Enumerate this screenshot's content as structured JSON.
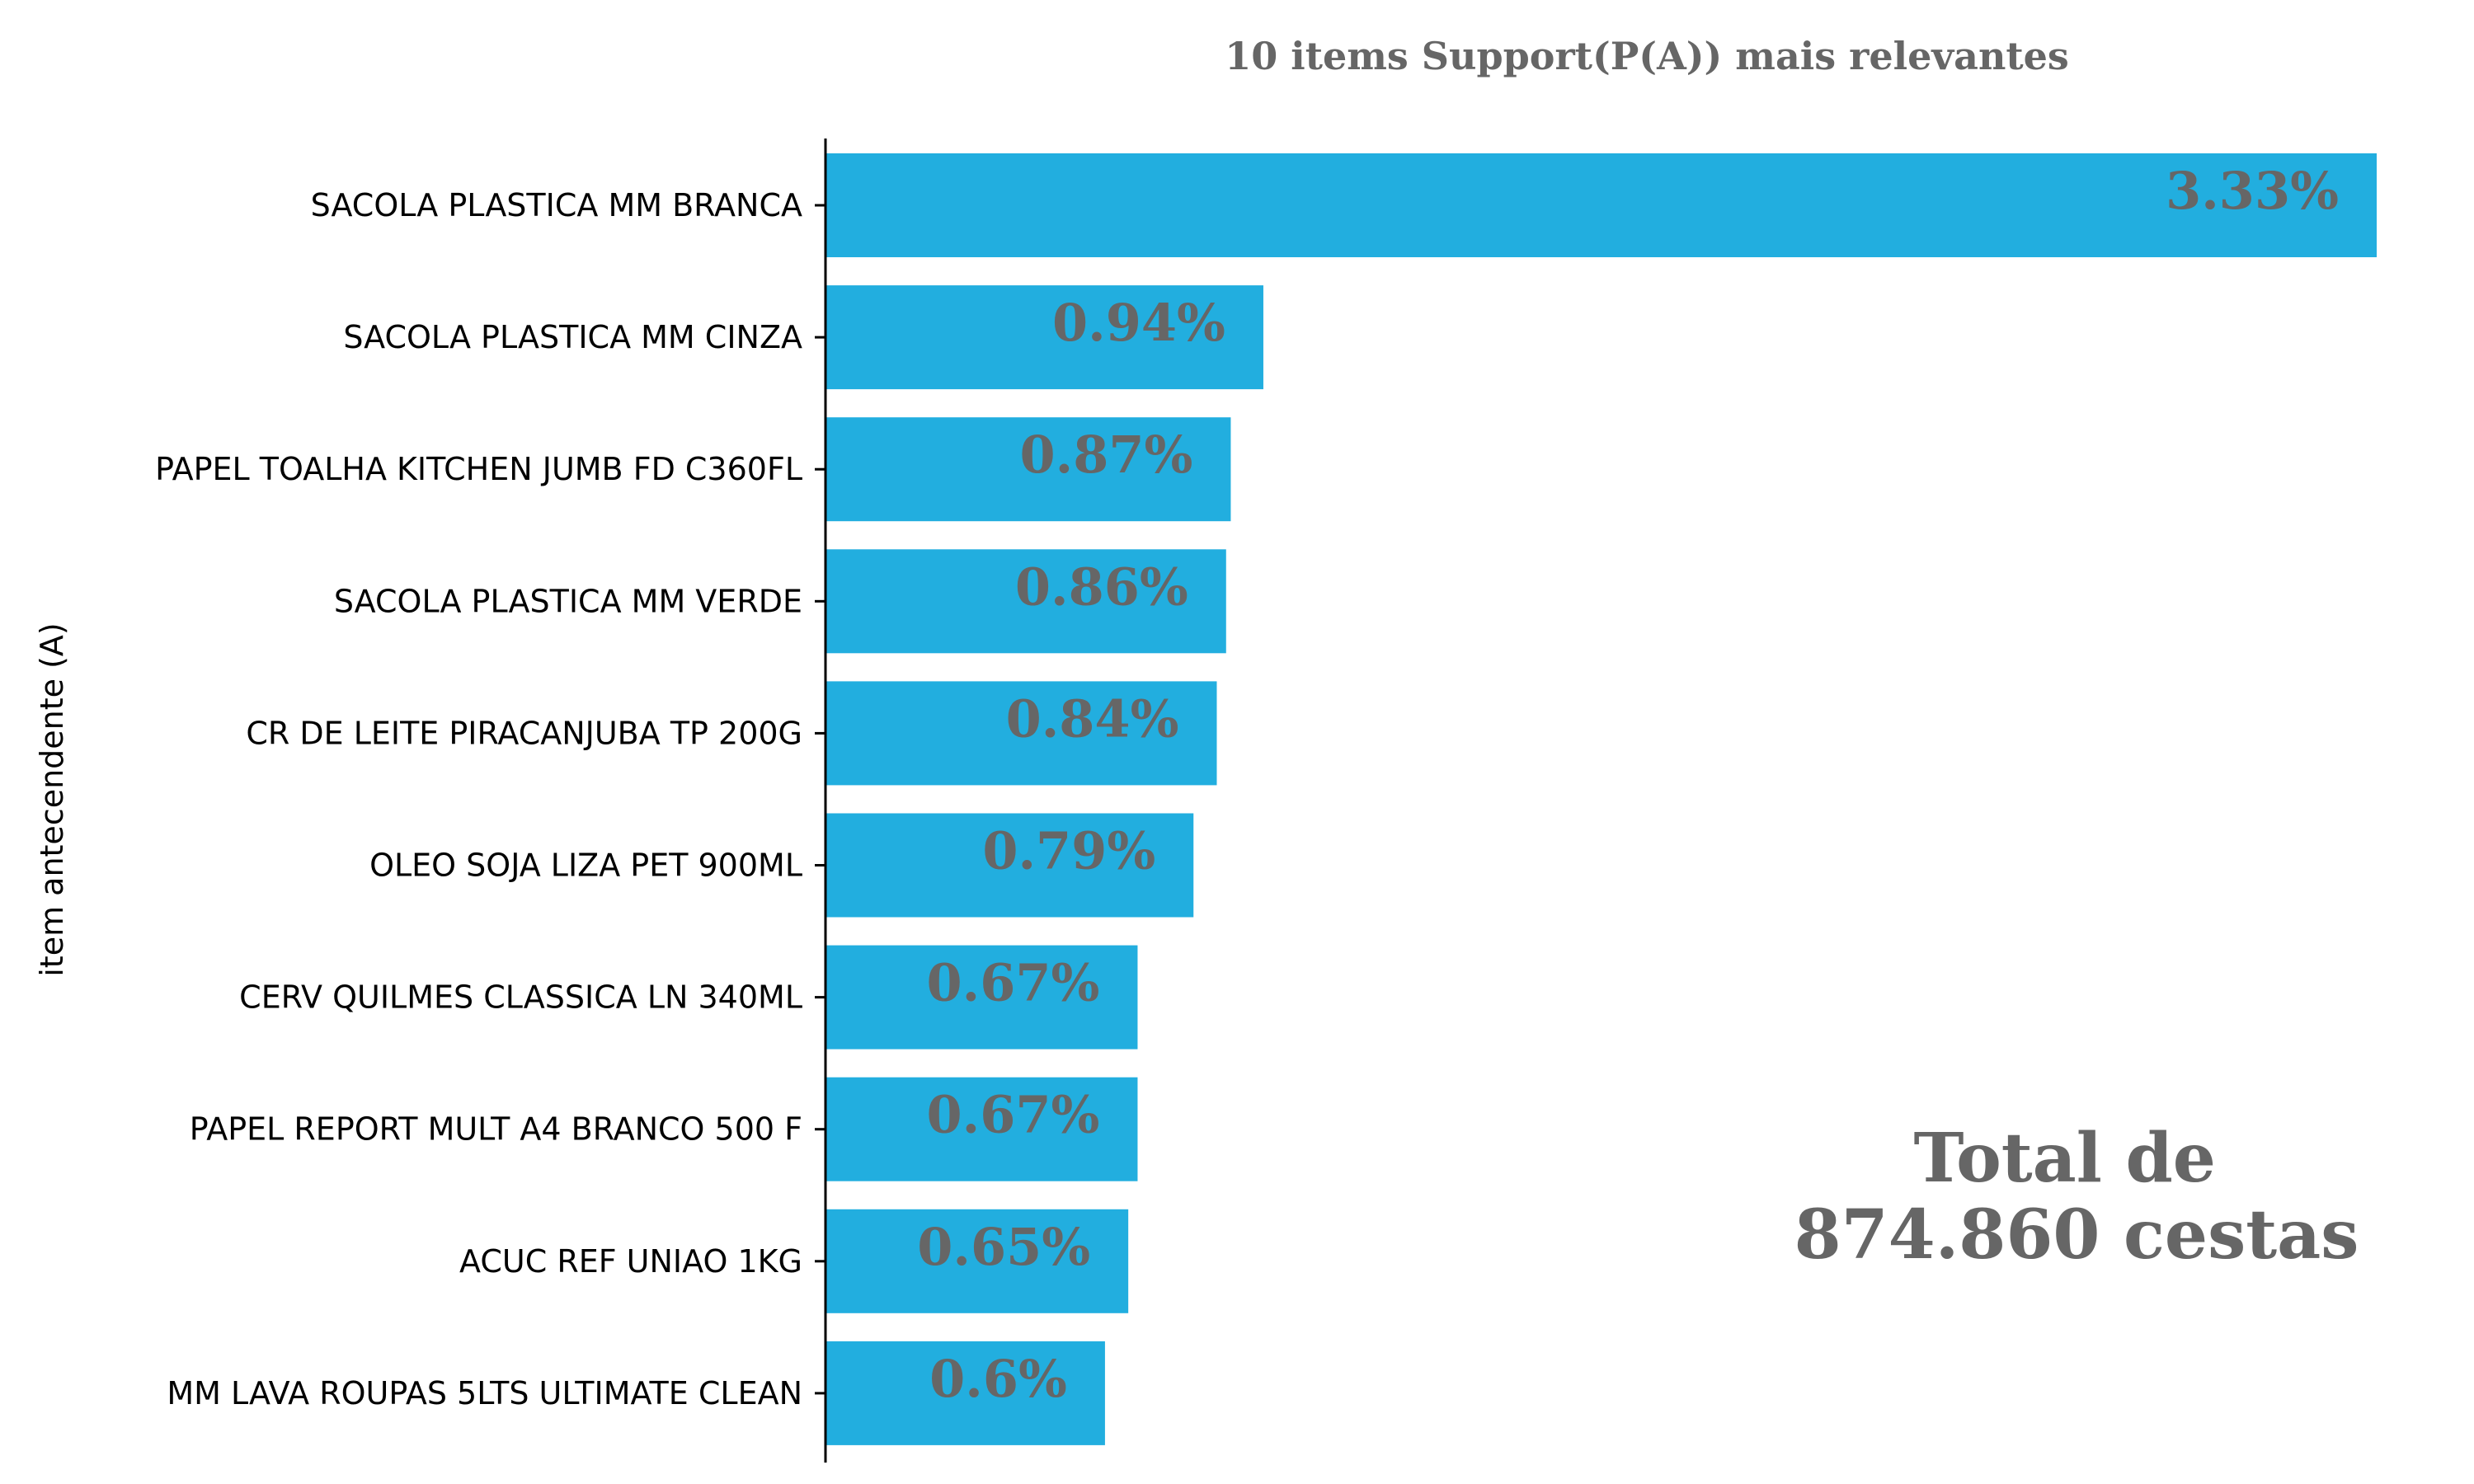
{
  "chart_data": {
    "type": "bar",
    "orientation": "horizontal",
    "title": "10 items Support(P(A)) mais relevantes",
    "xlabel": "",
    "ylabel": "item antecendente (A)",
    "categories": [
      "SACOLA PLASTICA MM BRANCA",
      "SACOLA PLASTICA MM CINZA",
      "PAPEL TOALHA KITCHEN JUMB FD C360FL",
      "SACOLA PLASTICA MM VERDE",
      "CR DE LEITE PIRACANJUBA TP 200G",
      "OLEO SOJA LIZA PET 900ML",
      "CERV QUILMES CLASSICA LN 340ML",
      "PAPEL REPORT MULT A4 BRANCO 500 F",
      "ACUC REF UNIAO 1KG",
      "MM LAVA ROUPAS 5LTS ULTIMATE CLEAN"
    ],
    "values": [
      3.33,
      0.94,
      0.87,
      0.86,
      0.84,
      0.79,
      0.67,
      0.67,
      0.65,
      0.6
    ],
    "data_labels": [
      "3.33%",
      "0.94%",
      "0.87%",
      "0.86%",
      "0.84%",
      "0.79%",
      "0.67%",
      "0.67%",
      "0.65%",
      "0.6%"
    ],
    "xlim": [
      0,
      3.33
    ],
    "grid": false,
    "legend": "none",
    "annotation": [
      "Total de",
      "874.860 cestas"
    ]
  },
  "colors": {
    "bar": "#22aedf",
    "label_text": "#666666",
    "axis": "#000000"
  }
}
